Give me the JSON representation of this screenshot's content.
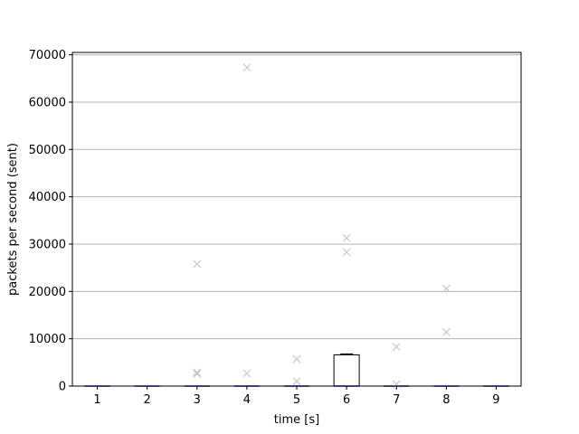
{
  "chart_data": {
    "type": "box",
    "title": "",
    "xlabel": "time [s]",
    "ylabel": "packets per second (sent)",
    "ylim": [
      0,
      70500
    ],
    "yticks": [
      0,
      10000,
      20000,
      30000,
      40000,
      50000,
      60000,
      70000
    ],
    "ytick_labels": [
      "0",
      "10000",
      "20000",
      "30000",
      "40000",
      "50000",
      "60000",
      "70000"
    ],
    "grid": "horizontal",
    "categories": [
      "1",
      "2",
      "3",
      "4",
      "5",
      "6",
      "7",
      "8",
      "9"
    ],
    "boxes": [
      {
        "x": "1",
        "q1": 0,
        "median": 0,
        "q3": 0,
        "whisker_low": 0,
        "whisker_high": 0,
        "outliers": []
      },
      {
        "x": "2",
        "q1": 0,
        "median": 0,
        "q3": 0,
        "whisker_low": 0,
        "whisker_high": 0,
        "outliers": []
      },
      {
        "x": "3",
        "q1": 0,
        "median": 0,
        "q3": 0,
        "whisker_low": 0,
        "whisker_high": 0,
        "outliers": [
          25800,
          2900,
          2600
        ]
      },
      {
        "x": "4",
        "q1": 0,
        "median": 0,
        "q3": 0,
        "whisker_low": 0,
        "whisker_high": 0,
        "outliers": [
          67300,
          2700
        ]
      },
      {
        "x": "5",
        "q1": 0,
        "median": 0,
        "q3": 0,
        "whisker_low": 0,
        "whisker_high": 0,
        "outliers": [
          5700,
          1000
        ]
      },
      {
        "x": "6",
        "q1": 0,
        "median": 0,
        "q3": 6600,
        "whisker_low": 0,
        "whisker_high": 6800,
        "outliers": [
          31300,
          28300
        ]
      },
      {
        "x": "7",
        "q1": 0,
        "median": 0,
        "q3": 0,
        "whisker_low": 0,
        "whisker_high": 0,
        "outliers": [
          8300,
          400
        ]
      },
      {
        "x": "8",
        "q1": 0,
        "median": 0,
        "q3": 0,
        "whisker_low": 0,
        "whisker_high": 0,
        "outliers": [
          20600,
          11400
        ]
      },
      {
        "x": "9",
        "q1": 0,
        "median": 0,
        "q3": 0,
        "whisker_low": 0,
        "whisker_high": 0,
        "outliers": []
      }
    ],
    "colors": {
      "box": "#000000",
      "median": "#0000cc",
      "outlier": "#c8c8c8",
      "grid": "#b0b0b0"
    },
    "outlier_marker": "x"
  }
}
